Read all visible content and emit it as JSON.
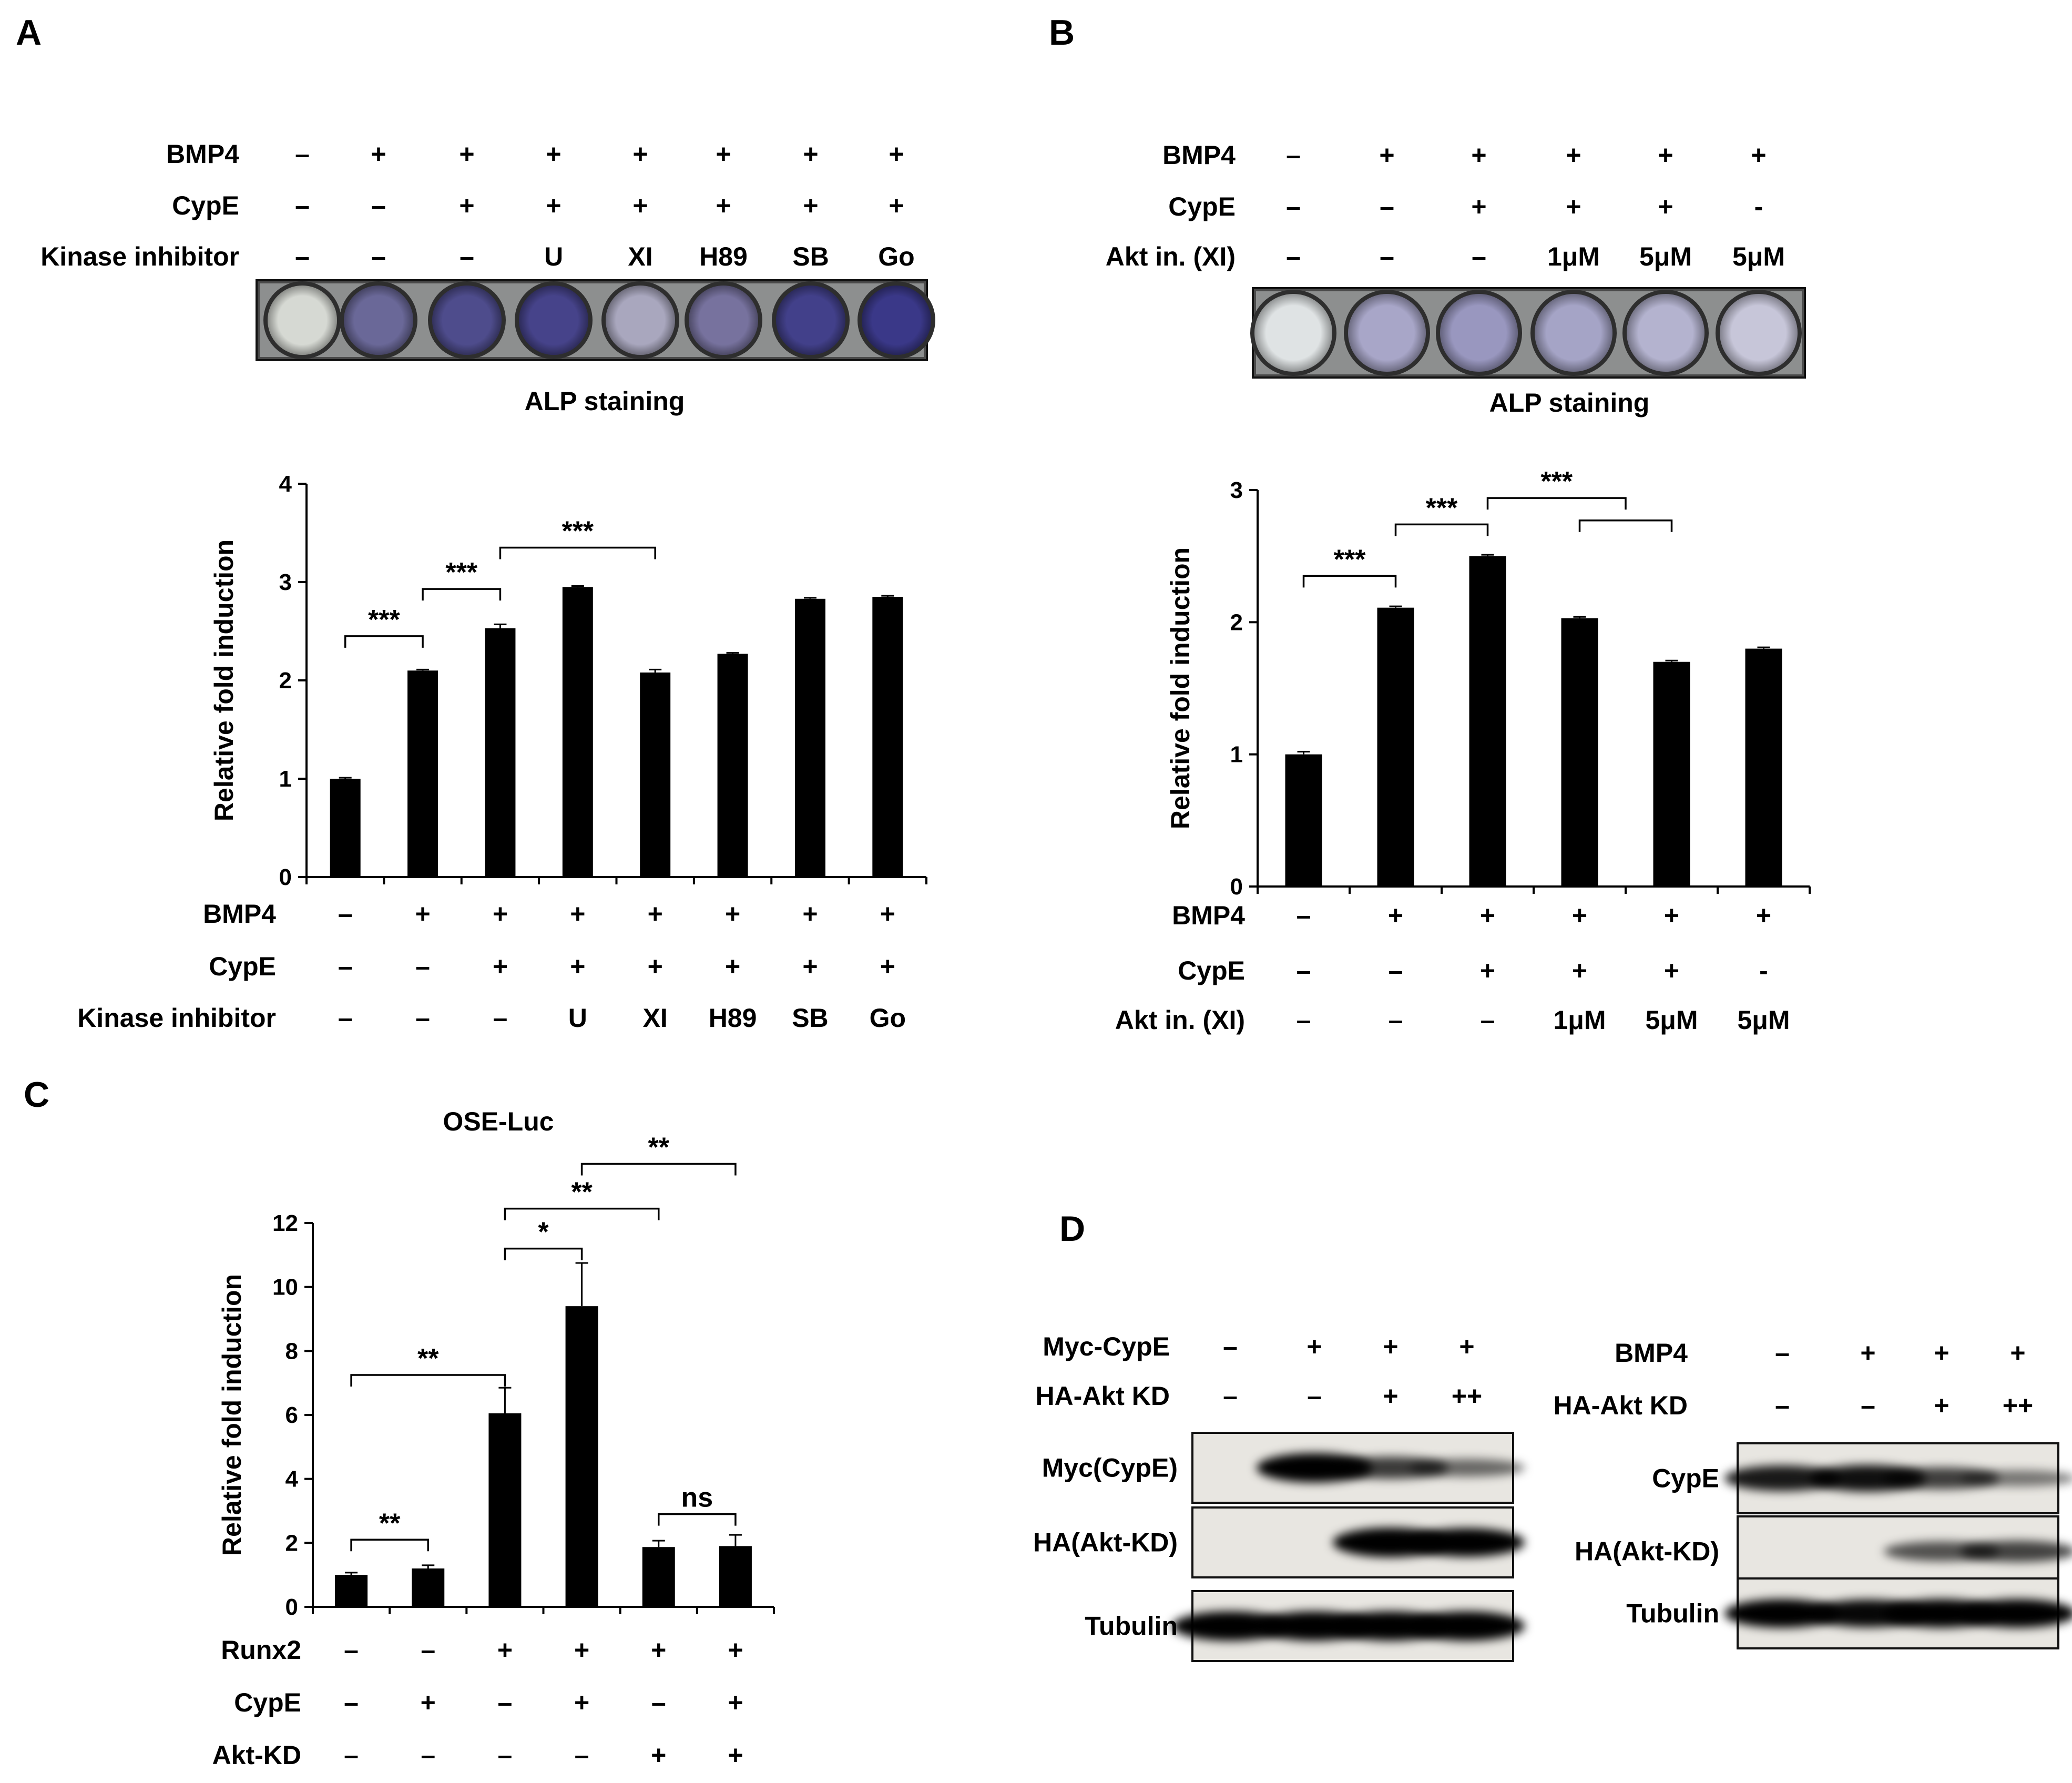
{
  "panels": {
    "a": {
      "letter": "A",
      "rows": [
        {
          "label": "BMP4",
          "cells": [
            "–",
            "+",
            "+",
            "+",
            "+",
            "+",
            "+",
            "+"
          ]
        },
        {
          "label": "CypE",
          "cells": [
            "–",
            "–",
            "+",
            "+",
            "+",
            "+",
            "+",
            "+"
          ]
        },
        {
          "label": "Kinase inhibitor",
          "cells": [
            "–",
            "–",
            "–",
            "U",
            "XI",
            "H89",
            "SB",
            "Go"
          ]
        }
      ],
      "stain_label": "ALP staining",
      "stain_colors": [
        "#d6d9d3",
        "#6a6898",
        "#4e4c8c",
        "#46438a",
        "#a9a7be",
        "#77729e",
        "#42408a",
        "#3a3888"
      ]
    },
    "b": {
      "letter": "B",
      "rows": [
        {
          "label": "BMP4",
          "cells": [
            "–",
            "+",
            "+",
            "+",
            "+",
            "+"
          ]
        },
        {
          "label": "CypE",
          "cells": [
            "–",
            "–",
            "+",
            "+",
            "+",
            "-"
          ]
        },
        {
          "label": "Akt in. (XI)",
          "cells": [
            "–",
            "–",
            "–",
            "1μM",
            "5μM",
            "5μM"
          ]
        }
      ],
      "stain_label": "ALP staining",
      "stain_colors": [
        "#dfe3e4",
        "#a8a6c8",
        "#9997bf",
        "#a5a4c6",
        "#b4b3cf",
        "#c7c6d9"
      ]
    },
    "c": {
      "letter": "C"
    },
    "d": {
      "letter": "D",
      "left": {
        "rows": [
          {
            "label": "Myc-CypE",
            "cells": [
              "–",
              "+",
              "+",
              "+"
            ]
          },
          {
            "label": "HA-Akt KD",
            "cells": [
              "–",
              "–",
              "+",
              "++"
            ]
          }
        ],
        "blots": [
          {
            "label": "Myc(CypE)",
            "bands": [
              0,
              1,
              0.62,
              0.38
            ]
          },
          {
            "label": "HA(Akt-KD)",
            "bands": [
              0,
              0,
              1,
              0.95
            ]
          },
          {
            "label": "Tubulin",
            "bands": [
              1,
              1,
              1,
              1
            ]
          }
        ]
      },
      "right": {
        "rows": [
          {
            "label": "BMP4",
            "cells": [
              "–",
              "+",
              "+",
              "+"
            ]
          },
          {
            "label": "HA-Akt KD",
            "cells": [
              "–",
              "–",
              "+",
              "++"
            ]
          }
        ],
        "blots": [
          {
            "label": "CypE",
            "bands": [
              0.8,
              0.85,
              0.6,
              0.3
            ]
          },
          {
            "label": "HA(Akt-KD)",
            "bands": [
              0,
              0,
              0.5,
              0.58
            ]
          },
          {
            "label": "Tubulin",
            "bands": [
              0.95,
              0.9,
              0.95,
              0.95
            ]
          }
        ]
      }
    }
  },
  "chart_data": [
    {
      "type": "bar",
      "panel": "A",
      "title": "",
      "ylabel": "Relative fold induction",
      "ylim": [
        0,
        4
      ],
      "yticks": [
        "0",
        "1",
        "2",
        "3",
        "4"
      ],
      "values": [
        1.0,
        2.1,
        2.53,
        2.95,
        2.08,
        2.27,
        2.83,
        2.85
      ],
      "errors": [
        0.01,
        0.01,
        0.04,
        0.01,
        0.03,
        0.01,
        0.01,
        0.01
      ],
      "rows": [
        {
          "label": "BMP4",
          "cells": [
            "–",
            "+",
            "+",
            "+",
            "+",
            "+",
            "+",
            "+"
          ]
        },
        {
          "label": "CypE",
          "cells": [
            "–",
            "–",
            "+",
            "+",
            "+",
            "+",
            "+",
            "+"
          ]
        },
        {
          "label": "Kinase inhibitor",
          "cells": [
            "–",
            "–",
            "–",
            "U",
            "XI",
            "H89",
            "SB",
            "Go"
          ]
        }
      ],
      "brackets": [
        {
          "from": 0,
          "to": 1,
          "y": 2.45,
          "label": "***"
        },
        {
          "from": 1,
          "to": 2,
          "y": 2.93,
          "label": "***"
        },
        {
          "from": 2,
          "to": 4,
          "y": 3.35,
          "label": "***"
        }
      ]
    },
    {
      "type": "bar",
      "panel": "B",
      "title": "",
      "ylabel": "Relative fold induction",
      "ylim": [
        0,
        3
      ],
      "yticks": [
        "0",
        "1",
        "2",
        "3"
      ],
      "values": [
        1.0,
        2.11,
        2.5,
        2.03,
        1.7,
        1.8
      ],
      "errors": [
        0.02,
        0.01,
        0.01,
        0.01,
        0.01,
        0.01
      ],
      "rows": [
        {
          "label": "BMP4",
          "cells": [
            "–",
            "+",
            "+",
            "+",
            "+",
            "+"
          ]
        },
        {
          "label": "CypE",
          "cells": [
            "–",
            "–",
            "+",
            "+",
            "+",
            "-"
          ]
        },
        {
          "label": "Akt in. (XI)",
          "cells": [
            "–",
            "–",
            "–",
            "1μM",
            "5μM",
            "5μM"
          ]
        }
      ],
      "brackets": [
        {
          "from": 0,
          "to": 1,
          "y": 2.35,
          "label": "***"
        },
        {
          "from": 1,
          "to": 2,
          "y": 2.74,
          "label": "***"
        },
        {
          "from": 2,
          "to": 3.5,
          "y": 2.94,
          "label": "***"
        },
        {
          "from": 3,
          "to": 4,
          "y": 2.77,
          "label": ""
        }
      ]
    },
    {
      "type": "bar",
      "panel": "C",
      "title": "OSE-Luc",
      "ylabel": "Relative fold induction",
      "ylim": [
        0,
        12
      ],
      "yticks": [
        "0",
        "2",
        "4",
        "6",
        "8",
        "10",
        "12"
      ],
      "values": [
        1.0,
        1.2,
        6.05,
        9.4,
        1.87,
        1.9
      ],
      "errors": [
        0.07,
        0.1,
        0.8,
        1.35,
        0.2,
        0.35
      ],
      "rows": [
        {
          "label": "Runx2",
          "cells": [
            "–",
            "–",
            "+",
            "+",
            "+",
            "+"
          ]
        },
        {
          "label": "CypE",
          "cells": [
            "–",
            "+",
            "–",
            "+",
            "–",
            "+"
          ]
        },
        {
          "label": "Akt-KD",
          "cells": [
            "–",
            "–",
            "–",
            "–",
            "+",
            "+"
          ]
        }
      ],
      "brackets": [
        {
          "from": 0,
          "to": 1,
          "y": 2.1,
          "label": "**"
        },
        {
          "from": 0,
          "to": 2,
          "y": 7.25,
          "label": "**"
        },
        {
          "from": 2,
          "to": 3,
          "y": 11.2,
          "label": "*"
        },
        {
          "from": 2,
          "to": 4,
          "y": 12.45,
          "label": "**"
        },
        {
          "from": 3,
          "to": 5,
          "y": 13.85,
          "label": "**"
        },
        {
          "from": 4,
          "to": 5,
          "y": 2.9,
          "label": "ns"
        }
      ]
    }
  ]
}
